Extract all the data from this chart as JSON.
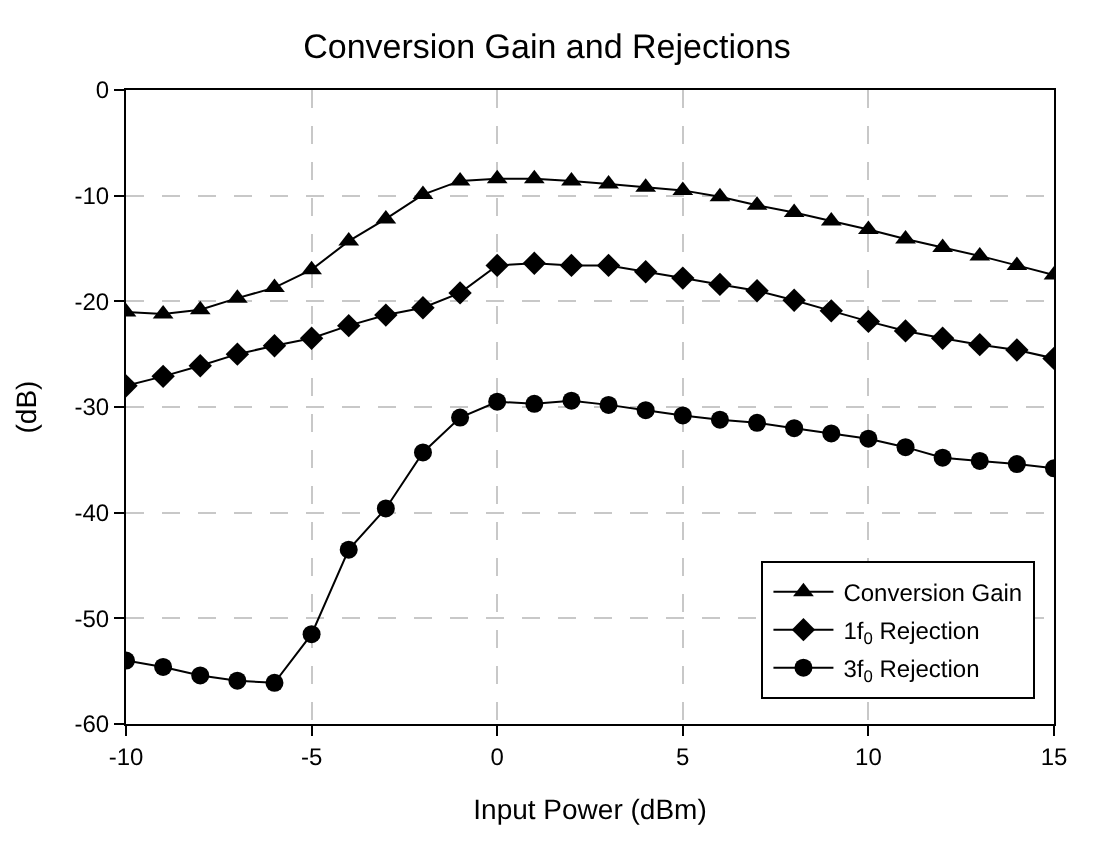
{
  "chart_data": {
    "type": "line",
    "title": "Conversion Gain and Rejections",
    "xlabel": "Input Power (dBm)",
    "ylabel": "(dB)",
    "x": [
      -10,
      -9,
      -8,
      -7,
      -6,
      -5,
      -4,
      -3,
      -2,
      -1,
      0,
      1,
      2,
      3,
      4,
      5,
      6,
      7,
      8,
      9,
      10,
      11,
      12,
      13,
      14,
      15
    ],
    "series": [
      {
        "name": "Conversion Gain",
        "color": "#000000",
        "marker": "triangle",
        "values": [
          -21,
          -21.2,
          -20.8,
          -19.7,
          -18.7,
          -17,
          -14.3,
          -12.2,
          -9.9,
          -8.6,
          -8.4,
          -8.4,
          -8.6,
          -8.9,
          -9.2,
          -9.5,
          -10.1,
          -10.9,
          -11.6,
          -12.4,
          -13.2,
          -14.1,
          -14.9,
          -15.7,
          -16.6,
          -17.5
        ]
      },
      {
        "name": "1f$_{0}$ Rejection",
        "color": "#000000",
        "marker": "diamond",
        "values": [
          -28,
          -27.1,
          -26.1,
          -25,
          -24.2,
          -23.5,
          -22.3,
          -21.3,
          -20.6,
          -19.2,
          -16.6,
          -16.4,
          -16.6,
          -16.6,
          -17.2,
          -17.8,
          -18.4,
          -19,
          -19.9,
          -20.9,
          -21.9,
          -22.8,
          -23.5,
          -24.1,
          -24.6,
          -25.4
        ]
      },
      {
        "name": "3f$_{0}$ Rejection",
        "color": "#000000",
        "marker": "circle",
        "values": [
          -54,
          -54.6,
          -55.4,
          -55.9,
          -56.1,
          -51.5,
          -43.5,
          -39.6,
          -34.3,
          -31,
          -29.5,
          -29.7,
          -29.4,
          -29.8,
          -30.3,
          -30.8,
          -31.2,
          -31.5,
          -32,
          -32.5,
          -33,
          -33.8,
          -34.8,
          -35.1,
          -35.4,
          -35.8
        ]
      }
    ],
    "xlim": [
      -10,
      15
    ],
    "xticks": [
      -10,
      -5,
      0,
      5,
      10,
      15
    ],
    "ylim": [
      -60,
      0
    ],
    "yticks": [
      -60,
      -50,
      -40,
      -30,
      -20,
      -10,
      0
    ],
    "grid": true,
    "legend": "bottom right",
    "line_style": "solid"
  }
}
